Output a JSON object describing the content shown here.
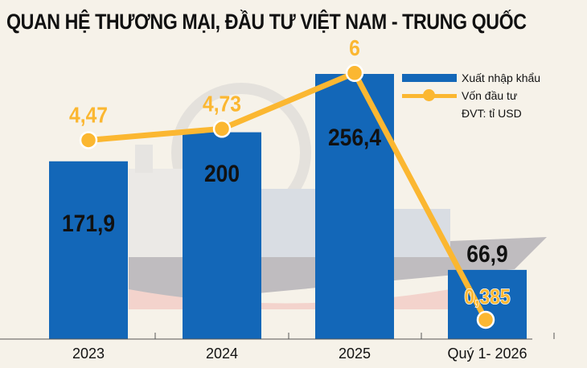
{
  "title": "QUAN HỆ THƯƠNG MẠI, ĐẦU TƯ VIỆT NAM - TRUNG QUỐC",
  "chart_data": {
    "type": "bar+line",
    "title": "QUAN HỆ THƯƠNG MẠI, ĐẦU TƯ VIỆT NAM - TRUNG QUỐC",
    "categories": [
      "2023",
      "2024",
      "2025",
      "Quý 1- 2026"
    ],
    "series": [
      {
        "name": "Xuất nhập khẩu",
        "type": "bar",
        "values": [
          171.9,
          200,
          256.4,
          66.9
        ],
        "labels": [
          "171,9",
          "200",
          "256,4",
          "66,9"
        ],
        "color": "#1367b8"
      },
      {
        "name": "Vốn đầu tư",
        "type": "line",
        "values": [
          4.47,
          4.73,
          6,
          0.385
        ],
        "labels": [
          "4,47",
          "4,73",
          "6",
          "0,385"
        ],
        "color": "#fbb731"
      }
    ],
    "unit": "ĐVT: tỉ USD",
    "legend_position": "top-right",
    "grid": false
  }
}
